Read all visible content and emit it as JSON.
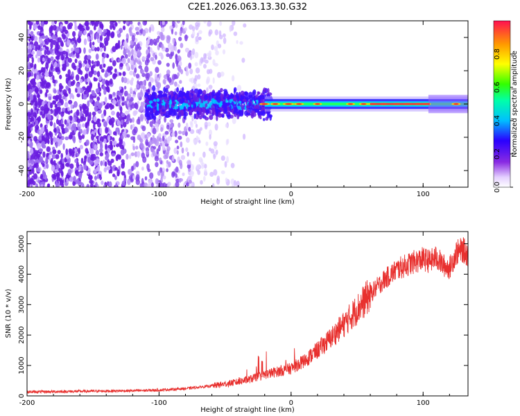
{
  "title": "C2E1.2026.063.13.30.G32",
  "chart_data": [
    {
      "type": "heatmap",
      "xlabel": "Height of straight line (km)",
      "ylabel": "Frequency (Hz)",
      "xlim": [
        -200,
        134
      ],
      "ylim": [
        -50,
        50
      ],
      "xticks": [
        -200,
        -100,
        0,
        100
      ],
      "xtick_labels": [
        "-200",
        "-100",
        "0",
        "100"
      ],
      "yticks": [
        -40,
        -20,
        0,
        20,
        40
      ],
      "ytick_labels": [
        "-40",
        "-20",
        "0",
        "20",
        "40"
      ],
      "colorbar": {
        "label": "Normalized spectral amplitude",
        "range": [
          0,
          1
        ],
        "ticks": [
          0.0,
          0.2,
          0.4,
          0.6,
          0.8
        ],
        "tick_labels": [
          "0.0",
          "0.2",
          "0.4",
          "0.6",
          "0.8"
        ]
      },
      "features": {
        "noise_region_x": [
          -200,
          -35
        ],
        "noise_density_fade": "dense below -120 km, sparse from -100 to -35 km",
        "signal_band_center_hz": 0,
        "signal_band_start_x": -110,
        "signal_band_halfwidth_hz": {
          "broad_region": 8,
          "narrow_region": 3
        },
        "peak_amplitude_region_x": [
          20,
          110
        ]
      }
    },
    {
      "type": "line",
      "xlabel": "Height of straight line (km)",
      "ylabel": "SNR (10 * v/v)",
      "xlim": [
        -200,
        134
      ],
      "ylim": [
        0,
        5400
      ],
      "xticks": [
        -200,
        -100,
        0,
        100
      ],
      "xtick_labels": [
        "-200",
        "-100",
        "0",
        "100"
      ],
      "yticks": [
        0,
        1000,
        2000,
        3000,
        4000,
        5000
      ],
      "ytick_labels": [
        "0",
        "1000",
        "2000",
        "3000",
        "4000",
        "5000"
      ],
      "color": "#e8302e",
      "series": [
        {
          "name": "SNR",
          "x": [
            -200,
            -180,
            -160,
            -140,
            -120,
            -100,
            -80,
            -60,
            -50,
            -40,
            -30,
            -20,
            -10,
            0,
            10,
            20,
            30,
            40,
            50,
            60,
            70,
            80,
            90,
            100,
            105,
            110,
            115,
            120,
            125,
            130,
            134
          ],
          "y": [
            130,
            140,
            150,
            160,
            170,
            190,
            240,
            330,
            390,
            460,
            560,
            700,
            800,
            900,
            1150,
            1500,
            1900,
            2350,
            2850,
            3350,
            3800,
            4150,
            4350,
            4500,
            4420,
            4550,
            4300,
            4200,
            4700,
            4800,
            4650
          ]
        }
      ]
    }
  ]
}
